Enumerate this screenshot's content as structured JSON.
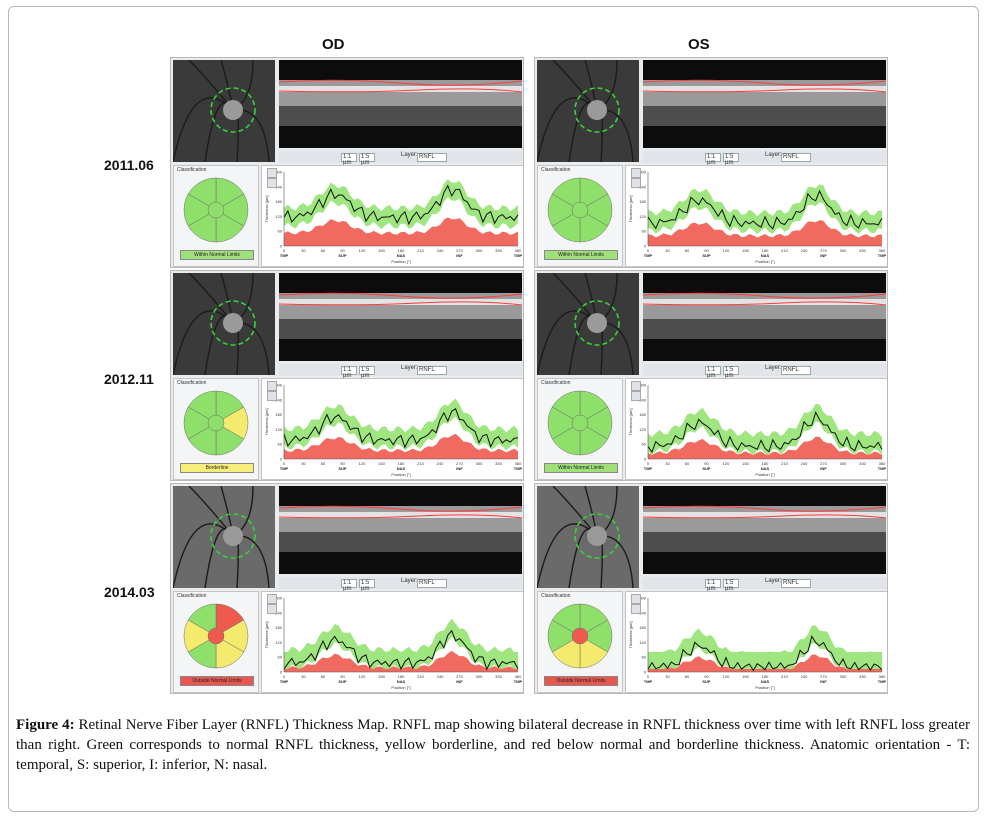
{
  "columns": [
    "OD",
    "OS"
  ],
  "rows": [
    {
      "date": "2011.06",
      "od": {
        "status": "Within Normal Limits",
        "status_color": "#9fe07a"
      },
      "os": {
        "status": "Within Normal Limits",
        "status_color": "#9fe07a"
      }
    },
    {
      "date": "2012.11",
      "od": {
        "status": "Borderline",
        "status_color": "#f5ee7a"
      },
      "os": {
        "status": "Within Normal Limits",
        "status_color": "#9fe07a"
      }
    },
    {
      "date": "2014.03",
      "od": {
        "status": "Outside Normal Limits",
        "status_color": "#e8564f"
      },
      "os": {
        "status": "Outside Normal Limits",
        "status_color": "#e8564f"
      }
    }
  ],
  "panel_ui": {
    "classification": "Classification",
    "layer_label": "Layer:",
    "layer_value": "RNFL",
    "zoom_a": "1:1 µm",
    "zoom_b": "1:5 µm",
    "x_axis": "Position [°]",
    "y_axis": "Thickness [µm]",
    "x_ticks": [
      "0",
      "30",
      "60",
      "90",
      "120",
      "150",
      "180",
      "210",
      "240",
      "270",
      "300",
      "330",
      "360"
    ],
    "y_ticks": [
      "0",
      "60",
      "120",
      "180",
      "240",
      "300"
    ],
    "region_labels_od": [
      "TMP",
      "SUP",
      "NAS",
      "INF",
      "TMP"
    ],
    "region_labels_os": [
      "TMP",
      "SUP",
      "NAS",
      "INF",
      "TMP"
    ]
  },
  "caption": {
    "label": "Figure 4:",
    "text": " Retinal Nerve Fiber Layer (RNFL) Thickness Map. RNFL map showing bilateral decrease in RNFL thickness over time with left RNFL loss greater than right. Green corresponds to normal RNFL thickness, yellow borderline, and red below normal and borderline thickness. Anatomic orientation - T: temporal, S: superior, I: inferior, N: nasal."
  },
  "colors": {
    "normal": "#8ee06a",
    "borderline": "#f3ea6e",
    "below": "#ef5a4f",
    "bscan_line": "#ff3b3b"
  }
}
